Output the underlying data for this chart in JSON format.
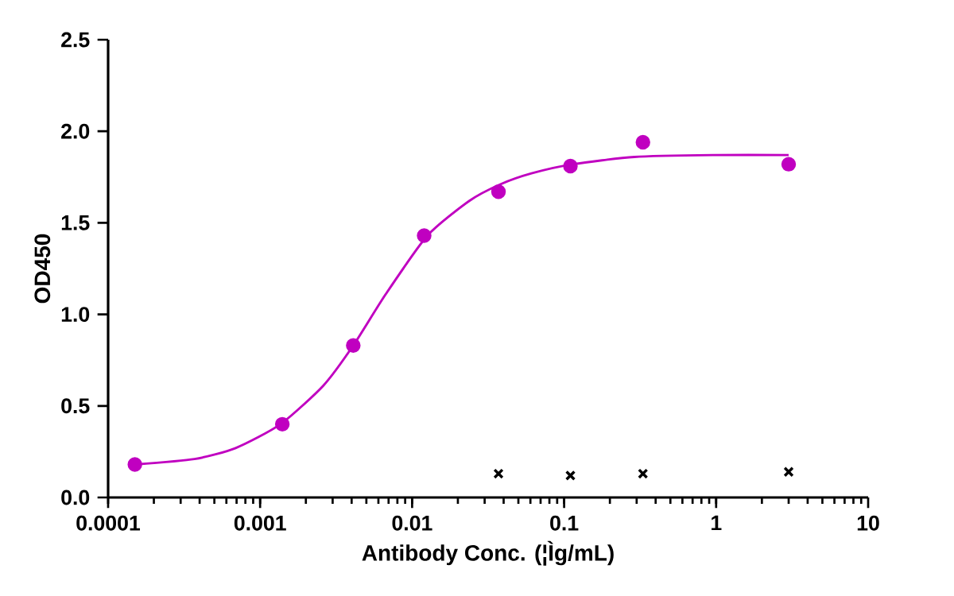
{
  "chart_data": {
    "type": "scatter",
    "xlabel": "Antibody Conc. (¦Ìg/mL)",
    "ylabel": "OD450",
    "log": "x",
    "xlim": [
      0.0001,
      10
    ],
    "ylim": [
      0,
      2.5
    ],
    "xticks": [
      {
        "value": 0.0001,
        "label": "0.0001"
      },
      {
        "value": 0.001,
        "label": "0.001"
      },
      {
        "value": 0.01,
        "label": "0.01"
      },
      {
        "value": 0.1,
        "label": "0.1"
      },
      {
        "value": 1,
        "label": "1"
      },
      {
        "value": 10,
        "label": "10"
      }
    ],
    "yticks": [
      {
        "value": 0,
        "label": "0.0"
      },
      {
        "value": 0.5,
        "label": "0.5"
      },
      {
        "value": 1,
        "label": "1.0"
      },
      {
        "value": 1.5,
        "label": "1.5"
      },
      {
        "value": 2,
        "label": "2.0"
      },
      {
        "value": 2.5,
        "label": "2.5"
      }
    ],
    "grid": false,
    "series": [
      {
        "type": "line",
        "marker": "none",
        "color": "#c000c0",
        "x": [
          0.00015,
          0.00037,
          0.00069,
          0.00136,
          0.0026,
          0.0041,
          0.0067,
          0.0126,
          0.0238,
          0.038,
          0.061,
          0.114,
          0.29,
          0.95,
          3
        ],
        "values": [
          0.18,
          0.21,
          0.27,
          0.4,
          0.61,
          0.83,
          1.11,
          1.43,
          1.62,
          1.71,
          1.77,
          1.82,
          1.86,
          1.87,
          1.87
        ]
      },
      {
        "marker": "circle",
        "color": "#c000c0",
        "x": [
          0.00015,
          0.0014,
          0.0041,
          0.012,
          0.037,
          0.11,
          0.33,
          3
        ],
        "values": [
          0.18,
          0.4,
          0.83,
          1.43,
          1.67,
          1.81,
          1.94,
          1.82
        ]
      },
      {
        "type": "scatter",
        "marker": "cross",
        "color": "#000000",
        "x": [
          0.037,
          0.11,
          0.33,
          3
        ],
        "values": [
          0.13,
          0.12,
          0.13,
          0.14
        ]
      }
    ]
  }
}
